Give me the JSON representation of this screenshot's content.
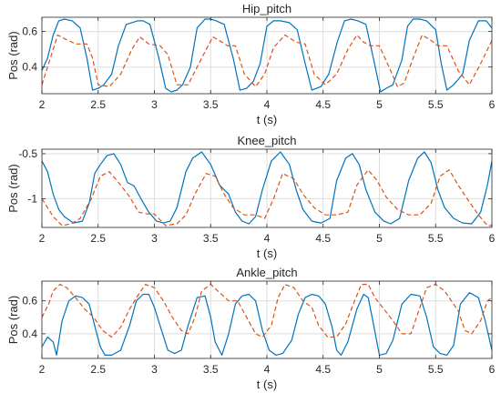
{
  "chart_data": [
    {
      "type": "line",
      "title": "Hip_pitch",
      "xlabel": "t (s)",
      "ylabel": "Pos (rad)",
      "xlim": [
        2,
        6
      ],
      "ylim": [
        0.25,
        0.68
      ],
      "xticks": [
        2,
        2.5,
        3,
        3.5,
        4,
        4.5,
        5,
        5.5,
        6
      ],
      "xtick_labels": [
        "2",
        "2.5",
        "3",
        "3.5",
        "4",
        "4.5",
        "5",
        "5.5",
        "6"
      ],
      "yticks": [
        0.4,
        0.6
      ],
      "ytick_labels": [
        "0.4",
        "0.6"
      ],
      "grid": true,
      "series": [
        {
          "color": "#0072BD",
          "style": "solid",
          "x": [
            2.0,
            2.05,
            2.1,
            2.15,
            2.2,
            2.27,
            2.34,
            2.4,
            2.45,
            2.5,
            2.55,
            2.62,
            2.68,
            2.75,
            2.8,
            2.85,
            2.9,
            2.96,
            3.04,
            3.1,
            3.15,
            3.2,
            3.25,
            3.32,
            3.38,
            3.45,
            3.5,
            3.55,
            3.62,
            3.7,
            3.76,
            3.82,
            3.88,
            3.94,
            4.0,
            4.06,
            4.12,
            4.2,
            4.27,
            4.34,
            4.4,
            4.48,
            4.55,
            4.63,
            4.69,
            4.75,
            4.81,
            4.88,
            4.95,
            5.01,
            5.06,
            5.12,
            5.2,
            5.25,
            5.3,
            5.36,
            5.42,
            5.5,
            5.55,
            5.6,
            5.66,
            5.74,
            5.8,
            5.88,
            5.95,
            6.0
          ],
          "y": [
            0.38,
            0.45,
            0.58,
            0.66,
            0.67,
            0.66,
            0.62,
            0.45,
            0.27,
            0.28,
            0.3,
            0.36,
            0.52,
            0.64,
            0.65,
            0.66,
            0.66,
            0.64,
            0.45,
            0.28,
            0.26,
            0.27,
            0.3,
            0.4,
            0.62,
            0.67,
            0.67,
            0.66,
            0.64,
            0.45,
            0.27,
            0.28,
            0.32,
            0.42,
            0.63,
            0.66,
            0.66,
            0.65,
            0.61,
            0.42,
            0.27,
            0.29,
            0.36,
            0.55,
            0.66,
            0.67,
            0.66,
            0.64,
            0.44,
            0.26,
            0.28,
            0.3,
            0.44,
            0.63,
            0.67,
            0.67,
            0.66,
            0.61,
            0.42,
            0.27,
            0.3,
            0.36,
            0.55,
            0.66,
            0.66,
            0.62
          ]
        },
        {
          "color": "#D95319",
          "style": "dashed",
          "x": [
            2.0,
            2.08,
            2.14,
            2.2,
            2.3,
            2.4,
            2.45,
            2.5,
            2.6,
            2.7,
            2.8,
            2.87,
            2.95,
            3.05,
            3.12,
            3.2,
            3.3,
            3.42,
            3.52,
            3.6,
            3.65,
            3.72,
            3.8,
            3.9,
            3.98,
            4.06,
            4.16,
            4.26,
            4.34,
            4.42,
            4.52,
            4.62,
            4.72,
            4.8,
            4.86,
            4.92,
            5.0,
            5.1,
            5.16,
            5.22,
            5.3,
            5.38,
            5.46,
            5.52,
            5.6,
            5.7,
            5.8,
            5.9,
            6.0
          ],
          "y": [
            0.3,
            0.46,
            0.58,
            0.56,
            0.53,
            0.53,
            0.45,
            0.3,
            0.29,
            0.36,
            0.5,
            0.57,
            0.53,
            0.52,
            0.47,
            0.3,
            0.3,
            0.45,
            0.57,
            0.54,
            0.52,
            0.52,
            0.36,
            0.29,
            0.36,
            0.51,
            0.58,
            0.54,
            0.53,
            0.36,
            0.3,
            0.36,
            0.5,
            0.58,
            0.54,
            0.52,
            0.52,
            0.38,
            0.29,
            0.31,
            0.45,
            0.58,
            0.55,
            0.52,
            0.52,
            0.38,
            0.3,
            0.42,
            0.55
          ]
        }
      ]
    },
    {
      "type": "line",
      "title": "Knee_pitch",
      "xlabel": "t (s)",
      "ylabel": "Pos (rad)",
      "xlim": [
        2,
        6
      ],
      "ylim": [
        -1.32,
        -0.45
      ],
      "xticks": [
        2,
        2.5,
        3,
        3.5,
        4,
        4.5,
        5,
        5.5,
        6
      ],
      "xtick_labels": [
        "2",
        "2.5",
        "3",
        "3.5",
        "4",
        "4.5",
        "5",
        "5.5",
        "6"
      ],
      "yticks": [
        -1,
        -0.5
      ],
      "ytick_labels": [
        "-1",
        "-0.5"
      ],
      "grid": true,
      "series": [
        {
          "color": "#0072BD",
          "style": "solid",
          "x": [
            2.0,
            2.05,
            2.1,
            2.15,
            2.2,
            2.28,
            2.36,
            2.42,
            2.47,
            2.52,
            2.58,
            2.64,
            2.7,
            2.76,
            2.82,
            2.88,
            2.95,
            3.02,
            3.08,
            3.14,
            3.2,
            3.28,
            3.34,
            3.42,
            3.5,
            3.58,
            3.66,
            3.72,
            3.78,
            3.84,
            3.9,
            3.96,
            4.04,
            4.12,
            4.2,
            4.26,
            4.32,
            4.4,
            4.48,
            4.56,
            4.62,
            4.7,
            4.76,
            4.82,
            4.88,
            4.96,
            5.04,
            5.1,
            5.18,
            5.26,
            5.34,
            5.4,
            5.46,
            5.52,
            5.58,
            5.66,
            5.74,
            5.82,
            5.9,
            5.96,
            6.0
          ],
          "y": [
            -0.58,
            -0.7,
            -0.95,
            -1.12,
            -1.2,
            -1.27,
            -1.25,
            -1.05,
            -0.72,
            -0.62,
            -0.52,
            -0.5,
            -0.62,
            -0.82,
            -0.86,
            -1.0,
            -1.15,
            -1.25,
            -1.27,
            -1.25,
            -1.1,
            -0.7,
            -0.55,
            -0.48,
            -0.62,
            -0.85,
            -0.95,
            -1.15,
            -1.25,
            -1.28,
            -1.2,
            -0.9,
            -0.58,
            -0.48,
            -0.62,
            -0.9,
            -1.12,
            -1.25,
            -1.27,
            -1.22,
            -0.8,
            -0.55,
            -0.5,
            -0.62,
            -0.9,
            -1.15,
            -1.25,
            -1.28,
            -1.22,
            -0.8,
            -0.55,
            -0.48,
            -0.6,
            -0.9,
            -1.1,
            -1.22,
            -1.27,
            -1.28,
            -1.15,
            -0.85,
            -0.58
          ]
        },
        {
          "color": "#D95319",
          "style": "dashed",
          "x": [
            2.0,
            2.1,
            2.18,
            2.26,
            2.34,
            2.44,
            2.52,
            2.6,
            2.7,
            2.78,
            2.86,
            2.94,
            3.0,
            3.1,
            3.2,
            3.28,
            3.36,
            3.46,
            3.54,
            3.62,
            3.7,
            3.8,
            3.9,
            3.98,
            4.06,
            4.14,
            4.24,
            4.32,
            4.42,
            4.52,
            4.62,
            4.72,
            4.8,
            4.9,
            4.98,
            5.06,
            5.16,
            5.26,
            5.36,
            5.46,
            5.54,
            5.62,
            5.7,
            5.78,
            5.88,
            5.96,
            6.0
          ],
          "y": [
            -1.0,
            -1.2,
            -1.3,
            -1.28,
            -1.22,
            -1.0,
            -0.75,
            -0.7,
            -0.85,
            -0.98,
            -1.15,
            -1.17,
            -1.17,
            -1.3,
            -1.28,
            -1.18,
            -0.95,
            -0.72,
            -0.75,
            -0.95,
            -1.1,
            -1.18,
            -1.18,
            -1.22,
            -1.0,
            -0.72,
            -0.78,
            -0.95,
            -1.1,
            -1.18,
            -1.18,
            -1.15,
            -0.85,
            -0.68,
            -0.8,
            -0.98,
            -1.12,
            -1.18,
            -1.18,
            -1.05,
            -0.75,
            -0.68,
            -0.85,
            -1.0,
            -1.18,
            -1.3,
            -1.3
          ]
        }
      ]
    },
    {
      "type": "line",
      "title": "Ankle_pitch",
      "xlabel": "t (s)",
      "ylabel": "Pos (rad)",
      "xlim": [
        2,
        6
      ],
      "ylim": [
        0.25,
        0.72
      ],
      "xticks": [
        2,
        2.5,
        3,
        3.5,
        4,
        4.5,
        5,
        5.5,
        6
      ],
      "xtick_labels": [
        "2",
        "2.5",
        "3",
        "3.5",
        "4",
        "4.5",
        "5",
        "5.5",
        "6"
      ],
      "yticks": [
        0.4,
        0.6
      ],
      "ytick_labels": [
        "0.4",
        "0.6"
      ],
      "grid": true,
      "series": [
        {
          "color": "#0072BD",
          "style": "solid",
          "x": [
            2.0,
            2.05,
            2.1,
            2.13,
            2.18,
            2.24,
            2.3,
            2.36,
            2.42,
            2.48,
            2.52,
            2.56,
            2.62,
            2.7,
            2.78,
            2.84,
            2.9,
            2.95,
            3.0,
            3.05,
            3.12,
            3.18,
            3.24,
            3.3,
            3.38,
            3.45,
            3.5,
            3.54,
            3.6,
            3.66,
            3.72,
            3.78,
            3.84,
            3.9,
            3.96,
            4.02,
            4.08,
            4.14,
            4.22,
            4.28,
            4.34,
            4.4,
            4.46,
            4.52,
            4.58,
            4.62,
            4.66,
            4.72,
            4.8,
            4.86,
            4.9,
            4.95,
            5.0,
            5.06,
            5.12,
            5.2,
            5.28,
            5.36,
            5.42,
            5.48,
            5.54,
            5.6,
            5.66,
            5.72,
            5.8,
            5.88,
            5.94,
            6.0
          ],
          "y": [
            0.32,
            0.38,
            0.35,
            0.27,
            0.48,
            0.6,
            0.63,
            0.62,
            0.58,
            0.42,
            0.32,
            0.27,
            0.27,
            0.3,
            0.45,
            0.6,
            0.64,
            0.64,
            0.56,
            0.45,
            0.3,
            0.28,
            0.3,
            0.45,
            0.62,
            0.63,
            0.5,
            0.35,
            0.27,
            0.4,
            0.58,
            0.63,
            0.64,
            0.6,
            0.42,
            0.3,
            0.27,
            0.28,
            0.36,
            0.52,
            0.62,
            0.64,
            0.63,
            0.58,
            0.44,
            0.3,
            0.27,
            0.35,
            0.55,
            0.64,
            0.62,
            0.45,
            0.27,
            0.28,
            0.36,
            0.58,
            0.64,
            0.63,
            0.5,
            0.32,
            0.28,
            0.27,
            0.33,
            0.58,
            0.65,
            0.62,
            0.48,
            0.3
          ]
        },
        {
          "color": "#D95319",
          "style": "dashed",
          "x": [
            2.0,
            2.06,
            2.1,
            2.16,
            2.22,
            2.3,
            2.38,
            2.46,
            2.54,
            2.62,
            2.7,
            2.78,
            2.86,
            2.92,
            3.0,
            3.08,
            3.16,
            3.24,
            3.3,
            3.36,
            3.42,
            3.5,
            3.58,
            3.66,
            3.74,
            3.82,
            3.9,
            3.96,
            4.04,
            4.1,
            4.16,
            4.24,
            4.32,
            4.4,
            4.46,
            4.54,
            4.62,
            4.7,
            4.78,
            4.84,
            4.9,
            4.96,
            5.04,
            5.12,
            5.2,
            5.28,
            5.34,
            5.42,
            5.5,
            5.58,
            5.64,
            5.7,
            5.76,
            5.82,
            5.9,
            5.96,
            6.0
          ],
          "y": [
            0.5,
            0.58,
            0.66,
            0.7,
            0.68,
            0.62,
            0.55,
            0.5,
            0.42,
            0.38,
            0.44,
            0.55,
            0.64,
            0.7,
            0.68,
            0.6,
            0.5,
            0.42,
            0.4,
            0.5,
            0.66,
            0.7,
            0.65,
            0.6,
            0.6,
            0.5,
            0.4,
            0.38,
            0.45,
            0.62,
            0.7,
            0.68,
            0.6,
            0.56,
            0.45,
            0.38,
            0.38,
            0.46,
            0.6,
            0.7,
            0.7,
            0.62,
            0.55,
            0.48,
            0.4,
            0.4,
            0.52,
            0.68,
            0.7,
            0.66,
            0.6,
            0.54,
            0.42,
            0.4,
            0.48,
            0.6,
            0.62
          ]
        }
      ]
    }
  ]
}
